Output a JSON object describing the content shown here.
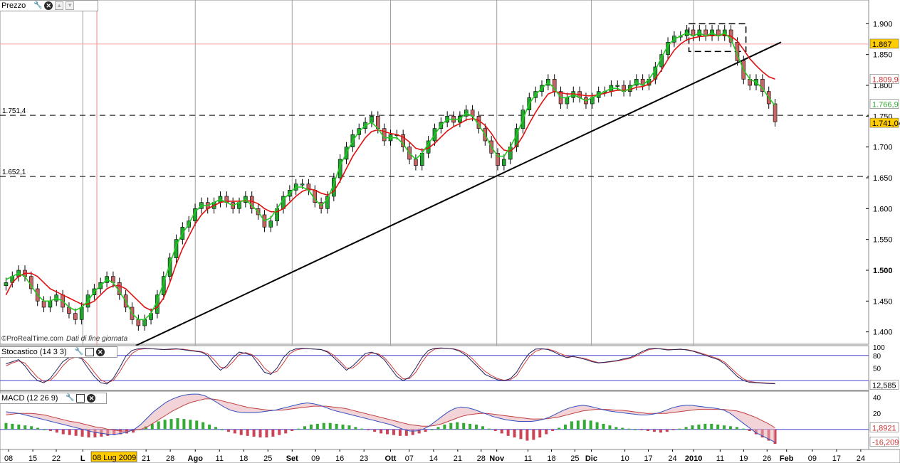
{
  "panels": {
    "price": {
      "title": "Prezzo"
    },
    "stoch": {
      "title": "Stocastico (14 3 3)"
    },
    "macd": {
      "title": "MACD (12 26 9)"
    }
  },
  "watermark": {
    "source": "©ProRealTime.com",
    "note": "Dati di fine giornata"
  },
  "colors": {
    "candle_up": "#22a82e",
    "candle_down": "#c86464",
    "ma_fast": "#22cc22",
    "ma_slow": "#e01010",
    "stoch_k": "#202060",
    "stoch_d": "#d04040",
    "macd_pos": "#33aa33",
    "macd_neg": "#cc4455",
    "label_gold": "#ffcc00",
    "label_red": "#cc3333",
    "label_green": "#33aa33"
  },
  "chart_data": [
    {
      "type": "candlestick",
      "title": "Prezzo",
      "y_range": [
        1.38,
        1.92
      ],
      "y_ticks": [
        "1.900",
        "1.850",
        "1.800",
        "1.750",
        "1.700",
        "1.650",
        "1.600",
        "1.550",
        "1.500",
        "1.450",
        "1.400"
      ],
      "price_labels": {
        "hline_red": "1.867",
        "ma_slow": "1.809,9",
        "ma_fast": "1.766,9",
        "last": "1.741,04"
      },
      "price_label_values": {
        "hline_red": 1.867,
        "ma_slow": 1.8099,
        "ma_fast": 1.7669,
        "last": 1.74104
      },
      "hlines": [
        {
          "label": "1.751,4",
          "value": 1.7514
        },
        {
          "label": "1.652,1",
          "value": 1.6521
        }
      ],
      "trendline": {
        "from": [
          0.265,
          1.38
        ],
        "to": [
          1.0,
          1.87
        ]
      },
      "closes": [
        1.48,
        1.49,
        1.5,
        1.49,
        1.47,
        1.45,
        1.44,
        1.45,
        1.46,
        1.44,
        1.43,
        1.42,
        1.44,
        1.46,
        1.47,
        1.48,
        1.49,
        1.48,
        1.46,
        1.44,
        1.42,
        1.41,
        1.42,
        1.43,
        1.46,
        1.49,
        1.52,
        1.55,
        1.57,
        1.58,
        1.6,
        1.61,
        1.6,
        1.61,
        1.62,
        1.61,
        1.6,
        1.61,
        1.62,
        1.6,
        1.59,
        1.57,
        1.58,
        1.6,
        1.62,
        1.63,
        1.64,
        1.64,
        1.63,
        1.61,
        1.6,
        1.62,
        1.65,
        1.68,
        1.7,
        1.72,
        1.73,
        1.74,
        1.75,
        1.73,
        1.71,
        1.72,
        1.72,
        1.7,
        1.68,
        1.67,
        1.69,
        1.71,
        1.73,
        1.74,
        1.75,
        1.74,
        1.75,
        1.76,
        1.75,
        1.73,
        1.71,
        1.69,
        1.67,
        1.68,
        1.7,
        1.73,
        1.76,
        1.78,
        1.79,
        1.8,
        1.81,
        1.79,
        1.77,
        1.78,
        1.79,
        1.78,
        1.77,
        1.78,
        1.79,
        1.79,
        1.8,
        1.8,
        1.79,
        1.8,
        1.81,
        1.8,
        1.81,
        1.83,
        1.85,
        1.87,
        1.88,
        1.88,
        1.89,
        1.88,
        1.89,
        1.88,
        1.89,
        1.88,
        1.89,
        1.87,
        1.84,
        1.81,
        1.8,
        1.81,
        1.79,
        1.77,
        1.741
      ],
      "ma_fast_values": [
        1.485,
        1.49,
        1.495,
        1.49,
        1.475,
        1.46,
        1.45,
        1.45,
        1.455,
        1.45,
        1.44,
        1.435,
        1.44,
        1.45,
        1.465,
        1.475,
        1.485,
        1.48,
        1.465,
        1.45,
        1.43,
        1.42,
        1.42,
        1.43,
        1.45,
        1.48,
        1.51,
        1.54,
        1.56,
        1.575,
        1.595,
        1.605,
        1.605,
        1.61,
        1.615,
        1.61,
        1.605,
        1.61,
        1.615,
        1.605,
        1.595,
        1.58,
        1.585,
        1.6,
        1.615,
        1.625,
        1.635,
        1.635,
        1.63,
        1.615,
        1.605,
        1.615,
        1.64,
        1.67,
        1.69,
        1.71,
        1.725,
        1.735,
        1.74,
        1.73,
        1.715,
        1.715,
        1.715,
        1.705,
        1.69,
        1.68,
        1.69,
        1.705,
        1.72,
        1.735,
        1.745,
        1.745,
        1.745,
        1.755,
        1.75,
        1.735,
        1.72,
        1.7,
        1.685,
        1.685,
        1.7,
        1.72,
        1.745,
        1.77,
        1.785,
        1.795,
        1.805,
        1.795,
        1.78,
        1.78,
        1.785,
        1.78,
        1.775,
        1.78,
        1.785,
        1.79,
        1.795,
        1.795,
        1.79,
        1.795,
        1.805,
        1.8,
        1.81,
        1.825,
        1.845,
        1.865,
        1.875,
        1.88,
        1.885,
        1.88,
        1.885,
        1.88,
        1.885,
        1.88,
        1.885,
        1.875,
        1.85,
        1.825,
        1.81,
        1.805,
        1.795,
        1.78,
        1.767
      ],
      "ma_slow_values": [
        1.46,
        1.48,
        1.49,
        1.495,
        1.495,
        1.49,
        1.48,
        1.47,
        1.465,
        1.46,
        1.455,
        1.45,
        1.445,
        1.445,
        1.45,
        1.46,
        1.47,
        1.475,
        1.475,
        1.47,
        1.46,
        1.45,
        1.44,
        1.435,
        1.44,
        1.455,
        1.48,
        1.51,
        1.535,
        1.555,
        1.575,
        1.59,
        1.6,
        1.605,
        1.61,
        1.612,
        1.612,
        1.612,
        1.613,
        1.612,
        1.608,
        1.6,
        1.595,
        1.595,
        1.6,
        1.61,
        1.62,
        1.628,
        1.632,
        1.63,
        1.625,
        1.622,
        1.628,
        1.645,
        1.665,
        1.685,
        1.7,
        1.715,
        1.725,
        1.728,
        1.725,
        1.722,
        1.72,
        1.716,
        1.708,
        1.698,
        1.695,
        1.698,
        1.706,
        1.716,
        1.726,
        1.733,
        1.738,
        1.744,
        1.746,
        1.743,
        1.735,
        1.722,
        1.706,
        1.695,
        1.693,
        1.702,
        1.718,
        1.738,
        1.756,
        1.772,
        1.786,
        1.79,
        1.788,
        1.786,
        1.786,
        1.785,
        1.783,
        1.783,
        1.785,
        1.787,
        1.79,
        1.792,
        1.792,
        1.793,
        1.797,
        1.798,
        1.802,
        1.811,
        1.825,
        1.842,
        1.857,
        1.867,
        1.874,
        1.877,
        1.879,
        1.88,
        1.881,
        1.881,
        1.882,
        1.88,
        1.872,
        1.858,
        1.843,
        1.832,
        1.822,
        1.814,
        1.81
      ]
    },
    {
      "type": "line",
      "title": "Stocastico (14 3 3)",
      "y_range": [
        0,
        100
      ],
      "y_ticks": [
        "100",
        "80",
        "50"
      ],
      "levels": [
        80,
        20
      ],
      "last_label": "12,585",
      "last_value": 12.585,
      "k_values": [
        60,
        65,
        70,
        55,
        35,
        20,
        15,
        25,
        45,
        65,
        75,
        78,
        72,
        50,
        30,
        15,
        12,
        25,
        50,
        78,
        92,
        96,
        97,
        96,
        95,
        94,
        95,
        96,
        94,
        92,
        90,
        88,
        80,
        60,
        45,
        55,
        75,
        88,
        85,
        80,
        60,
        40,
        35,
        50,
        75,
        90,
        96,
        97,
        96,
        95,
        94,
        88,
        75,
        60,
        45,
        55,
        70,
        85,
        88,
        82,
        70,
        50,
        30,
        20,
        28,
        50,
        75,
        92,
        97,
        98,
        97,
        95,
        90,
        80,
        65,
        50,
        35,
        28,
        22,
        20,
        25,
        40,
        65,
        85,
        95,
        96,
        94,
        88,
        80,
        75,
        78,
        74,
        70,
        65,
        62,
        64,
        66,
        68,
        72,
        75,
        82,
        90,
        96,
        97,
        95,
        93,
        94,
        95,
        93,
        90,
        85,
        80,
        75,
        70,
        60,
        45,
        30,
        20,
        16,
        15,
        14,
        13,
        12.6
      ],
      "d_values": [
        55,
        62,
        67,
        62,
        45,
        28,
        18,
        20,
        35,
        55,
        70,
        76,
        75,
        60,
        40,
        22,
        15,
        20,
        40,
        65,
        85,
        94,
        96,
        96,
        95,
        94,
        94,
        95,
        95,
        93,
        91,
        89,
        84,
        70,
        52,
        50,
        65,
        82,
        87,
        82,
        70,
        50,
        38,
        42,
        62,
        84,
        93,
        96,
        96,
        95,
        94,
        90,
        80,
        66,
        50,
        50,
        62,
        78,
        86,
        84,
        75,
        58,
        38,
        24,
        25,
        40,
        64,
        85,
        95,
        97,
        97,
        96,
        92,
        85,
        72,
        56,
        42,
        32,
        25,
        21,
        22,
        32,
        55,
        77,
        90,
        95,
        95,
        91,
        84,
        78,
        77,
        75,
        72,
        67,
        63,
        63,
        65,
        67,
        70,
        73,
        79,
        87,
        94,
        96,
        96,
        94,
        94,
        94,
        94,
        91,
        87,
        82,
        77,
        72,
        64,
        50,
        36,
        24,
        18,
        16,
        15,
        14,
        13
      ]
    },
    {
      "type": "bar",
      "title": "MACD (12 26 9)",
      "y_range": [
        -25,
        45
      ],
      "y_ticks": [
        "40",
        "20"
      ],
      "labels": {
        "signal": "1,8921",
        "macd": "-16,209"
      },
      "label_values": {
        "signal": 1.8921,
        "macd": -16.209
      },
      "histogram": [
        8,
        7,
        6,
        5,
        4,
        2,
        0,
        -2,
        -4,
        -6,
        -7,
        -8,
        -9,
        -10,
        -10,
        -9,
        -8,
        -7,
        -6,
        -5,
        -4,
        0,
        4,
        7,
        10,
        12,
        13,
        14,
        13,
        12,
        11,
        9,
        6,
        3,
        0,
        -3,
        -5,
        -7,
        -8,
        -9,
        -10,
        -10,
        -9,
        -7,
        -5,
        -2,
        1,
        4,
        6,
        7,
        8,
        8,
        7,
        6,
        5,
        3,
        1,
        -1,
        -3,
        -5,
        -6,
        -7,
        -8,
        -8,
        -7,
        -5,
        -3,
        0,
        3,
        6,
        8,
        9,
        8,
        7,
        6,
        4,
        1,
        -2,
        -5,
        -8,
        -10,
        -12,
        -14,
        -13,
        -10,
        -6,
        -2,
        2,
        6,
        10,
        11,
        12,
        11,
        9,
        7,
        5,
        3,
        2,
        1,
        0,
        -1,
        -2,
        -3,
        -4,
        -3,
        -1,
        1,
        3,
        5,
        6,
        7,
        7,
        6,
        5,
        4,
        3,
        1,
        -2,
        -6,
        -10,
        -14,
        -18
      ],
      "macd_line": [
        22,
        21,
        20,
        18,
        16,
        14,
        12,
        10,
        8,
        6,
        4,
        2,
        0,
        -2,
        -4,
        -5,
        -6,
        -6,
        -5,
        -3,
        0,
        6,
        14,
        22,
        28,
        34,
        38,
        41,
        43,
        44,
        44,
        42,
        38,
        33,
        28,
        24,
        22,
        21,
        21,
        21,
        22,
        23,
        24,
        26,
        28,
        30,
        32,
        33,
        32,
        30,
        27,
        24,
        22,
        20,
        18,
        16,
        14,
        12,
        10,
        8,
        6,
        3,
        0,
        -2,
        -2,
        0,
        4,
        10,
        16,
        22,
        26,
        28,
        27,
        25,
        22,
        19,
        16,
        14,
        12,
        11,
        10,
        10,
        10,
        11,
        13,
        16,
        20,
        24,
        27,
        29,
        30,
        29,
        27,
        25,
        23,
        22,
        21,
        20,
        19,
        18,
        18,
        19,
        21,
        24,
        27,
        29,
        30,
        30,
        29,
        28,
        27,
        26,
        24,
        20,
        14,
        8,
        2,
        -4,
        -8,
        -12,
        -16
      ],
      "signal_line": [
        18,
        19,
        20,
        20,
        20,
        19,
        18,
        16,
        14,
        12,
        10,
        9,
        7,
        5,
        3,
        2,
        0,
        -1,
        -2,
        -2,
        -1,
        0,
        3,
        8,
        13,
        18,
        23,
        27,
        31,
        34,
        36,
        38,
        38,
        37,
        35,
        33,
        31,
        29,
        27,
        26,
        25,
        24,
        24,
        24,
        25,
        26,
        27,
        28,
        29,
        29,
        29,
        28,
        27,
        26,
        24,
        22,
        20,
        18,
        16,
        14,
        12,
        10,
        8,
        6,
        5,
        4,
        4,
        5,
        7,
        10,
        13,
        16,
        18,
        19,
        20,
        20,
        19,
        18,
        17,
        16,
        15,
        14,
        13,
        13,
        13,
        14,
        15,
        17,
        19,
        21,
        23,
        24,
        25,
        25,
        25,
        24,
        24,
        23,
        22,
        21,
        20,
        20,
        20,
        20,
        21,
        22,
        23,
        24,
        25,
        25,
        25,
        25,
        25,
        24,
        23,
        21,
        18,
        15,
        11,
        7,
        2
      ]
    }
  ],
  "x_axis": {
    "labels": [
      {
        "text": "08",
        "bold": false,
        "pos": 0.011
      },
      {
        "text": "15",
        "bold": false,
        "pos": 0.042
      },
      {
        "text": "22",
        "bold": false,
        "pos": 0.072
      },
      {
        "text": "L",
        "bold": true,
        "pos": 0.106
      },
      {
        "text": "21",
        "bold": false,
        "pos": 0.187
      },
      {
        "text": "28",
        "bold": false,
        "pos": 0.218
      },
      {
        "text": "Ago",
        "bold": true,
        "pos": 0.25
      },
      {
        "text": "11",
        "bold": false,
        "pos": 0.281
      },
      {
        "text": "18",
        "bold": false,
        "pos": 0.312
      },
      {
        "text": "25",
        "bold": false,
        "pos": 0.343
      },
      {
        "text": "Set",
        "bold": true,
        "pos": 0.374
      },
      {
        "text": "09",
        "bold": false,
        "pos": 0.404
      },
      {
        "text": "16",
        "bold": false,
        "pos": 0.435
      },
      {
        "text": "23",
        "bold": false,
        "pos": 0.466
      },
      {
        "text": "Ott",
        "bold": true,
        "pos": 0.5
      },
      {
        "text": "07",
        "bold": false,
        "pos": 0.524
      },
      {
        "text": "14",
        "bold": false,
        "pos": 0.555
      },
      {
        "text": "21",
        "bold": false,
        "pos": 0.586
      },
      {
        "text": "28",
        "bold": false,
        "pos": 0.616
      },
      {
        "text": "Nov",
        "bold": true,
        "pos": 0.636
      },
      {
        "text": "11",
        "bold": false,
        "pos": 0.676
      },
      {
        "text": "18",
        "bold": false,
        "pos": 0.706
      },
      {
        "text": "25",
        "bold": false,
        "pos": 0.736
      },
      {
        "text": "Dic",
        "bold": true,
        "pos": 0.757
      },
      {
        "text": "10",
        "bold": false,
        "pos": 0.8
      },
      {
        "text": "17",
        "bold": false,
        "pos": 0.83
      },
      {
        "text": "24",
        "bold": false,
        "pos": 0.861
      },
      {
        "text": "2010",
        "bold": true,
        "pos": 0.888
      },
      {
        "text": "11",
        "bold": false,
        "pos": 0.922
      },
      {
        "text": "19",
        "bold": false,
        "pos": 0.952
      },
      {
        "text": "26",
        "bold": false,
        "pos": 0.982
      },
      {
        "text": "Feb",
        "bold": true,
        "pos": 1.007
      },
      {
        "text": "09",
        "bold": false,
        "pos": 1.04
      },
      {
        "text": "17",
        "bold": false,
        "pos": 1.071
      },
      {
        "text": "24",
        "bold": false,
        "pos": 1.102
      }
    ],
    "cursor_label": "08 Lug 2009",
    "cursor_pos": 0.124
  }
}
